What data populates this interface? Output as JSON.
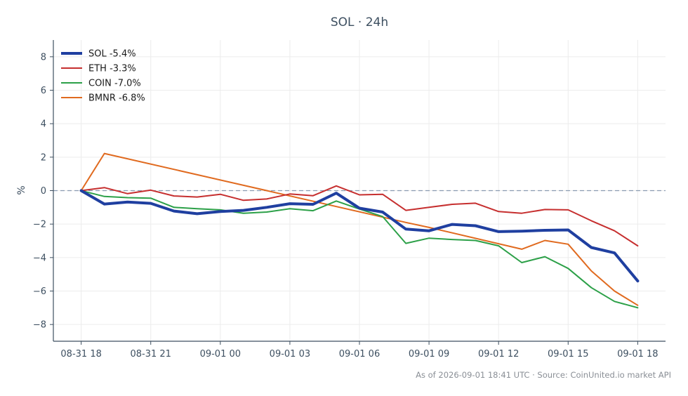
{
  "chart_data": {
    "type": "line",
    "title": "SOL · 24h",
    "xlabel": "",
    "ylabel": "%",
    "x_hours": [
      0,
      1,
      2,
      3,
      4,
      5,
      6,
      7,
      8,
      9,
      10,
      11,
      12,
      13,
      14,
      15,
      16,
      17,
      18,
      19,
      20,
      21,
      22,
      23,
      24
    ],
    "x_ticks": [
      {
        "hour": 0,
        "label": "08-31 18"
      },
      {
        "hour": 3,
        "label": "08-31 21"
      },
      {
        "hour": 6,
        "label": "09-01 00"
      },
      {
        "hour": 9,
        "label": "09-01 03"
      },
      {
        "hour": 12,
        "label": "09-01 06"
      },
      {
        "hour": 15,
        "label": "09-01 09"
      },
      {
        "hour": 18,
        "label": "09-01 12"
      },
      {
        "hour": 21,
        "label": "09-01 15"
      },
      {
        "hour": 24,
        "label": "09-01 18"
      }
    ],
    "xlim": [
      -1.2,
      25.2
    ],
    "ylim": [
      -9,
      9
    ],
    "y_ticks": [
      -8,
      -6,
      -4,
      -2,
      0,
      2,
      4,
      6,
      8
    ],
    "y_tick_labels": [
      "−8",
      "−6",
      "−4",
      "−2",
      "0",
      "2",
      "4",
      "6",
      "8"
    ],
    "zero_line": true,
    "grid": true,
    "legend_position": "top-left",
    "series": [
      {
        "name": "SOL -5.4%",
        "color": "#1f3fa0",
        "width": 4,
        "x": [
          0,
          1,
          2,
          3,
          4,
          5,
          6,
          7,
          8,
          9,
          10,
          11,
          12,
          13,
          14,
          15,
          16,
          17,
          18,
          19,
          20,
          21,
          22,
          23,
          24
        ],
        "values": [
          0,
          -0.8,
          -0.68,
          -0.76,
          -1.22,
          -1.38,
          -1.25,
          -1.18,
          -1.0,
          -0.78,
          -0.82,
          -0.15,
          -1.05,
          -1.28,
          -2.3,
          -2.4,
          -2.02,
          -2.1,
          -2.45,
          -2.42,
          -2.37,
          -2.35,
          -3.4,
          -3.72,
          -5.4
        ]
      },
      {
        "name": "ETH -3.3%",
        "color": "#c62f2f",
        "width": 2,
        "x": [
          0,
          1,
          2,
          3,
          4,
          5,
          6,
          7,
          8,
          9,
          10,
          11,
          12,
          13,
          14,
          15,
          16,
          17,
          18,
          19,
          20,
          21,
          22,
          23,
          24
        ],
        "values": [
          0,
          0.18,
          -0.18,
          0.03,
          -0.32,
          -0.38,
          -0.22,
          -0.58,
          -0.5,
          -0.2,
          -0.3,
          0.28,
          -0.25,
          -0.22,
          -1.18,
          -1.0,
          -0.82,
          -0.75,
          -1.25,
          -1.35,
          -1.13,
          -1.15,
          -1.8,
          -2.4,
          -3.3
        ]
      },
      {
        "name": "COIN -7.0%",
        "color": "#2ca048",
        "width": 2,
        "x": [
          0,
          1,
          2,
          3,
          4,
          5,
          6,
          7,
          8,
          9,
          10,
          11,
          12,
          13,
          14,
          15,
          16,
          17,
          18,
          19,
          20,
          21,
          22,
          23,
          24
        ],
        "values": [
          0,
          -0.35,
          -0.42,
          -0.45,
          -1.0,
          -1.08,
          -1.15,
          -1.35,
          -1.28,
          -1.08,
          -1.2,
          -0.62,
          -1.1,
          -1.55,
          -3.15,
          -2.84,
          -2.92,
          -2.98,
          -3.3,
          -4.3,
          -3.95,
          -4.65,
          -5.8,
          -6.62,
          -7.0
        ]
      },
      {
        "name": "BMNR -6.8%",
        "color": "#e06a1f",
        "width": 2,
        "x": [
          0,
          1,
          14,
          15,
          19,
          20,
          21,
          22,
          23,
          24
        ],
        "values": [
          0,
          2.22,
          -1.9,
          -2.2,
          -3.5,
          -2.98,
          -3.2,
          -4.8,
          -6.0,
          -6.85
        ]
      }
    ]
  },
  "footer": "As of 2026-09-01 18:41 UTC · Source: CoinUnited.io market API"
}
